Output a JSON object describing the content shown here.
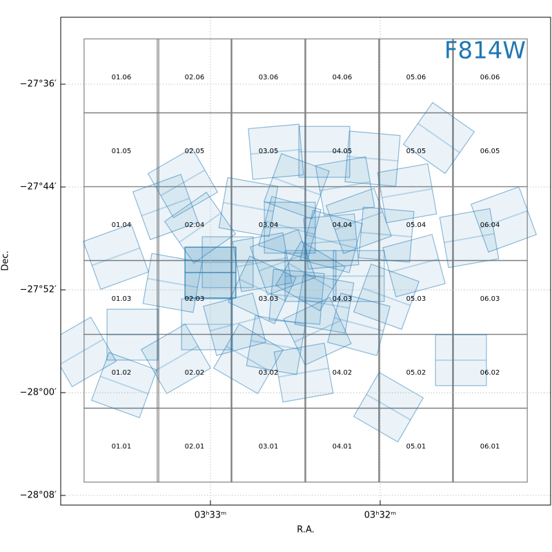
{
  "chart_data": {
    "type": "footprint",
    "filter": "F814W",
    "x_label": "R.A.",
    "y_label": "Dec.",
    "xlim": [
      53.4705,
      52.749
    ],
    "ylim": [
      -28.1458,
      -27.5132
    ],
    "xticks": [
      {
        "value": 53.25,
        "label": "03ʰ33ᵐ"
      },
      {
        "value": 53.0,
        "label": "03ʰ32ᵐ"
      }
    ],
    "yticks": [
      {
        "value": -27.6,
        "label": "−27°36′"
      },
      {
        "value": -27.7333,
        "label": "−27°44′"
      },
      {
        "value": -27.8667,
        "label": "−27°52′"
      },
      {
        "value": -28.0,
        "label": "−28°00′"
      },
      {
        "value": -28.1333,
        "label": "−28°08′"
      }
    ],
    "grid": true,
    "tile_color": "#808080",
    "tile_size": [
      0.11,
      0.096
    ],
    "tiles": [
      {
        "label": "01.06",
        "ra": 53.3811,
        "dec": -27.5893
      },
      {
        "label": "02.06",
        "ra": 53.2734,
        "dec": -27.5893
      },
      {
        "label": "03.06",
        "ra": 53.1646,
        "dec": -27.5893
      },
      {
        "label": "04.06",
        "ra": 53.0559,
        "dec": -27.5893
      },
      {
        "label": "05.06",
        "ra": 52.9472,
        "dec": -27.5893
      },
      {
        "label": "06.06",
        "ra": 52.8384,
        "dec": -27.5893
      },
      {
        "label": "01.05",
        "ra": 53.3811,
        "dec": -27.685
      },
      {
        "label": "02.05",
        "ra": 53.2734,
        "dec": -27.685
      },
      {
        "label": "03.05",
        "ra": 53.1646,
        "dec": -27.685
      },
      {
        "label": "04.05",
        "ra": 53.0559,
        "dec": -27.685
      },
      {
        "label": "05.05",
        "ra": 52.9472,
        "dec": -27.685
      },
      {
        "label": "06.05",
        "ra": 52.8384,
        "dec": -27.685
      },
      {
        "label": "01.04",
        "ra": 53.3811,
        "dec": -27.7808
      },
      {
        "label": "02.04",
        "ra": 53.2734,
        "dec": -27.7808
      },
      {
        "label": "03.04",
        "ra": 53.1646,
        "dec": -27.7808
      },
      {
        "label": "04.04",
        "ra": 53.0559,
        "dec": -27.7808
      },
      {
        "label": "05.04",
        "ra": 52.9472,
        "dec": -27.7808
      },
      {
        "label": "06.04",
        "ra": 52.8384,
        "dec": -27.7808
      },
      {
        "label": "01.03",
        "ra": 53.3811,
        "dec": -27.8765
      },
      {
        "label": "02.03",
        "ra": 53.2734,
        "dec": -27.8765
      },
      {
        "label": "03.03",
        "ra": 53.1646,
        "dec": -27.8765
      },
      {
        "label": "04.03",
        "ra": 53.0559,
        "dec": -27.8765
      },
      {
        "label": "05.03",
        "ra": 52.9472,
        "dec": -27.8765
      },
      {
        "label": "06.03",
        "ra": 52.8384,
        "dec": -27.8765
      },
      {
        "label": "01.02",
        "ra": 53.3811,
        "dec": -27.9723
      },
      {
        "label": "02.02",
        "ra": 53.2734,
        "dec": -27.9723
      },
      {
        "label": "03.02",
        "ra": 53.1646,
        "dec": -27.9723
      },
      {
        "label": "04.02",
        "ra": 53.0559,
        "dec": -27.9723
      },
      {
        "label": "05.02",
        "ra": 52.9472,
        "dec": -27.9723
      },
      {
        "label": "06.02",
        "ra": 52.8384,
        "dec": -27.9723
      },
      {
        "label": "01.01",
        "ra": 53.3811,
        "dec": -28.068
      },
      {
        "label": "02.01",
        "ra": 53.2734,
        "dec": -28.068
      },
      {
        "label": "03.01",
        "ra": 53.1646,
        "dec": -28.068
      },
      {
        "label": "04.01",
        "ra": 53.0559,
        "dec": -28.068
      },
      {
        "label": "05.01",
        "ra": 52.9472,
        "dec": -28.068
      },
      {
        "label": "06.01",
        "ra": 52.8384,
        "dec": -28.068
      }
    ],
    "exposure_color": "#1f77b4",
    "exposure_size": [
      0.075,
      0.066
    ],
    "exposures": [
      {
        "ra": 53.3892,
        "dec": -27.8237,
        "angle": -20
      },
      {
        "ra": 53.44,
        "dec": -27.9472,
        "angle": -30
      },
      {
        "ra": 53.377,
        "dec": -27.9902,
        "angle": 20
      },
      {
        "ra": 53.3648,
        "dec": -27.9248,
        "angle": 0
      },
      {
        "ra": 52.9136,
        "dec": -27.6698,
        "angle": 35
      },
      {
        "ra": 52.8181,
        "dec": -27.7754,
        "angle": -20
      },
      {
        "ra": 52.8689,
        "dec": -27.7996,
        "angle": -10
      },
      {
        "ra": 52.8811,
        "dec": -27.9579,
        "angle": 0
      },
      {
        "ra": 52.9878,
        "dec": -28.0188,
        "angle": 30
      },
      {
        "ra": 53.3008,
        "dec": -27.9562,
        "angle": -30
      },
      {
        "ra": 53.2907,
        "dec": -27.728,
        "angle": -30
      },
      {
        "ra": 53.3161,
        "dec": -27.7593,
        "angle": -20
      },
      {
        "ra": 53.3059,
        "dec": -27.8577,
        "angle": 10
      },
      {
        "ra": 53.25,
        "dec": -27.8443,
        "angle": 0
      },
      {
        "ra": 53.25,
        "dec": -27.8443,
        "angle": 0
      },
      {
        "ra": 53.25,
        "dec": -27.8443,
        "angle": 0
      },
      {
        "ra": 52.9909,
        "dec": -27.8756,
        "angle": 20
      },
      {
        "ra": 52.9502,
        "dec": -27.8353,
        "angle": -15
      },
      {
        "ra": 52.9604,
        "dec": -27.7414,
        "angle": -10
      },
      {
        "ra": 53.0112,
        "dec": -27.6966,
        "angle": 5
      },
      {
        "ra": 53.0823,
        "dec": -27.6877,
        "angle": 0
      },
      {
        "ra": 53.1535,
        "dec": -27.6877,
        "angle": -5
      },
      {
        "ra": 53.1941,
        "dec": -27.7593,
        "angle": 10
      },
      {
        "ra": 53.1331,
        "dec": -27.7861,
        "angle": 0
      },
      {
        "ra": 53.0722,
        "dec": -27.804,
        "angle": 15
      },
      {
        "ra": 53.0315,
        "dec": -27.7772,
        "angle": -20
      },
      {
        "ra": 53.1026,
        "dec": -27.8488,
        "angle": 0
      },
      {
        "ra": 53.1738,
        "dec": -27.8667,
        "angle": 25
      },
      {
        "ra": 53.2144,
        "dec": -27.9114,
        "angle": -15
      },
      {
        "ra": 53.1535,
        "dec": -27.9383,
        "angle": 10
      },
      {
        "ra": 53.0925,
        "dec": -27.9204,
        "angle": -25
      },
      {
        "ra": 53.0315,
        "dec": -27.9114,
        "angle": 15
      },
      {
        "ra": 53.1128,
        "dec": -27.974,
        "angle": -10
      },
      {
        "ra": 53.1941,
        "dec": -27.9562,
        "angle": 30
      },
      {
        "ra": 53.2551,
        "dec": -27.9114,
        "angle": 0
      },
      {
        "ra": 53.2652,
        "dec": -27.7861,
        "angle": -35
      },
      {
        "ra": 52.9909,
        "dec": -27.7951,
        "angle": 5
      },
      {
        "ra": 53.0518,
        "dec": -27.7324,
        "angle": -10
      },
      {
        "ra": 53.123,
        "dec": -27.7324,
        "angle": 20
      },
      {
        "ra": 53.2246,
        "dec": -27.8309,
        "angle": 0
      },
      {
        "ra": 53.0823,
        "dec": -27.8846,
        "angle": 10
      },
      {
        "ra": 53.1433,
        "dec": -27.8309,
        "angle": -20
      },
      {
        "ra": 53.0315,
        "dec": -27.8488,
        "angle": 0
      },
      {
        "ra": 53.1026,
        "dec": -27.8488,
        "angle": 30
      },
      {
        "ra": 53.1331,
        "dec": -27.7861,
        "angle": 15
      },
      {
        "ra": 53.0722,
        "dec": -27.804,
        "angle": -5
      },
      {
        "ra": 53.1738,
        "dec": -27.8309,
        "angle": -10
      },
      {
        "ra": 53.123,
        "dec": -27.8756,
        "angle": 5
      }
    ]
  }
}
